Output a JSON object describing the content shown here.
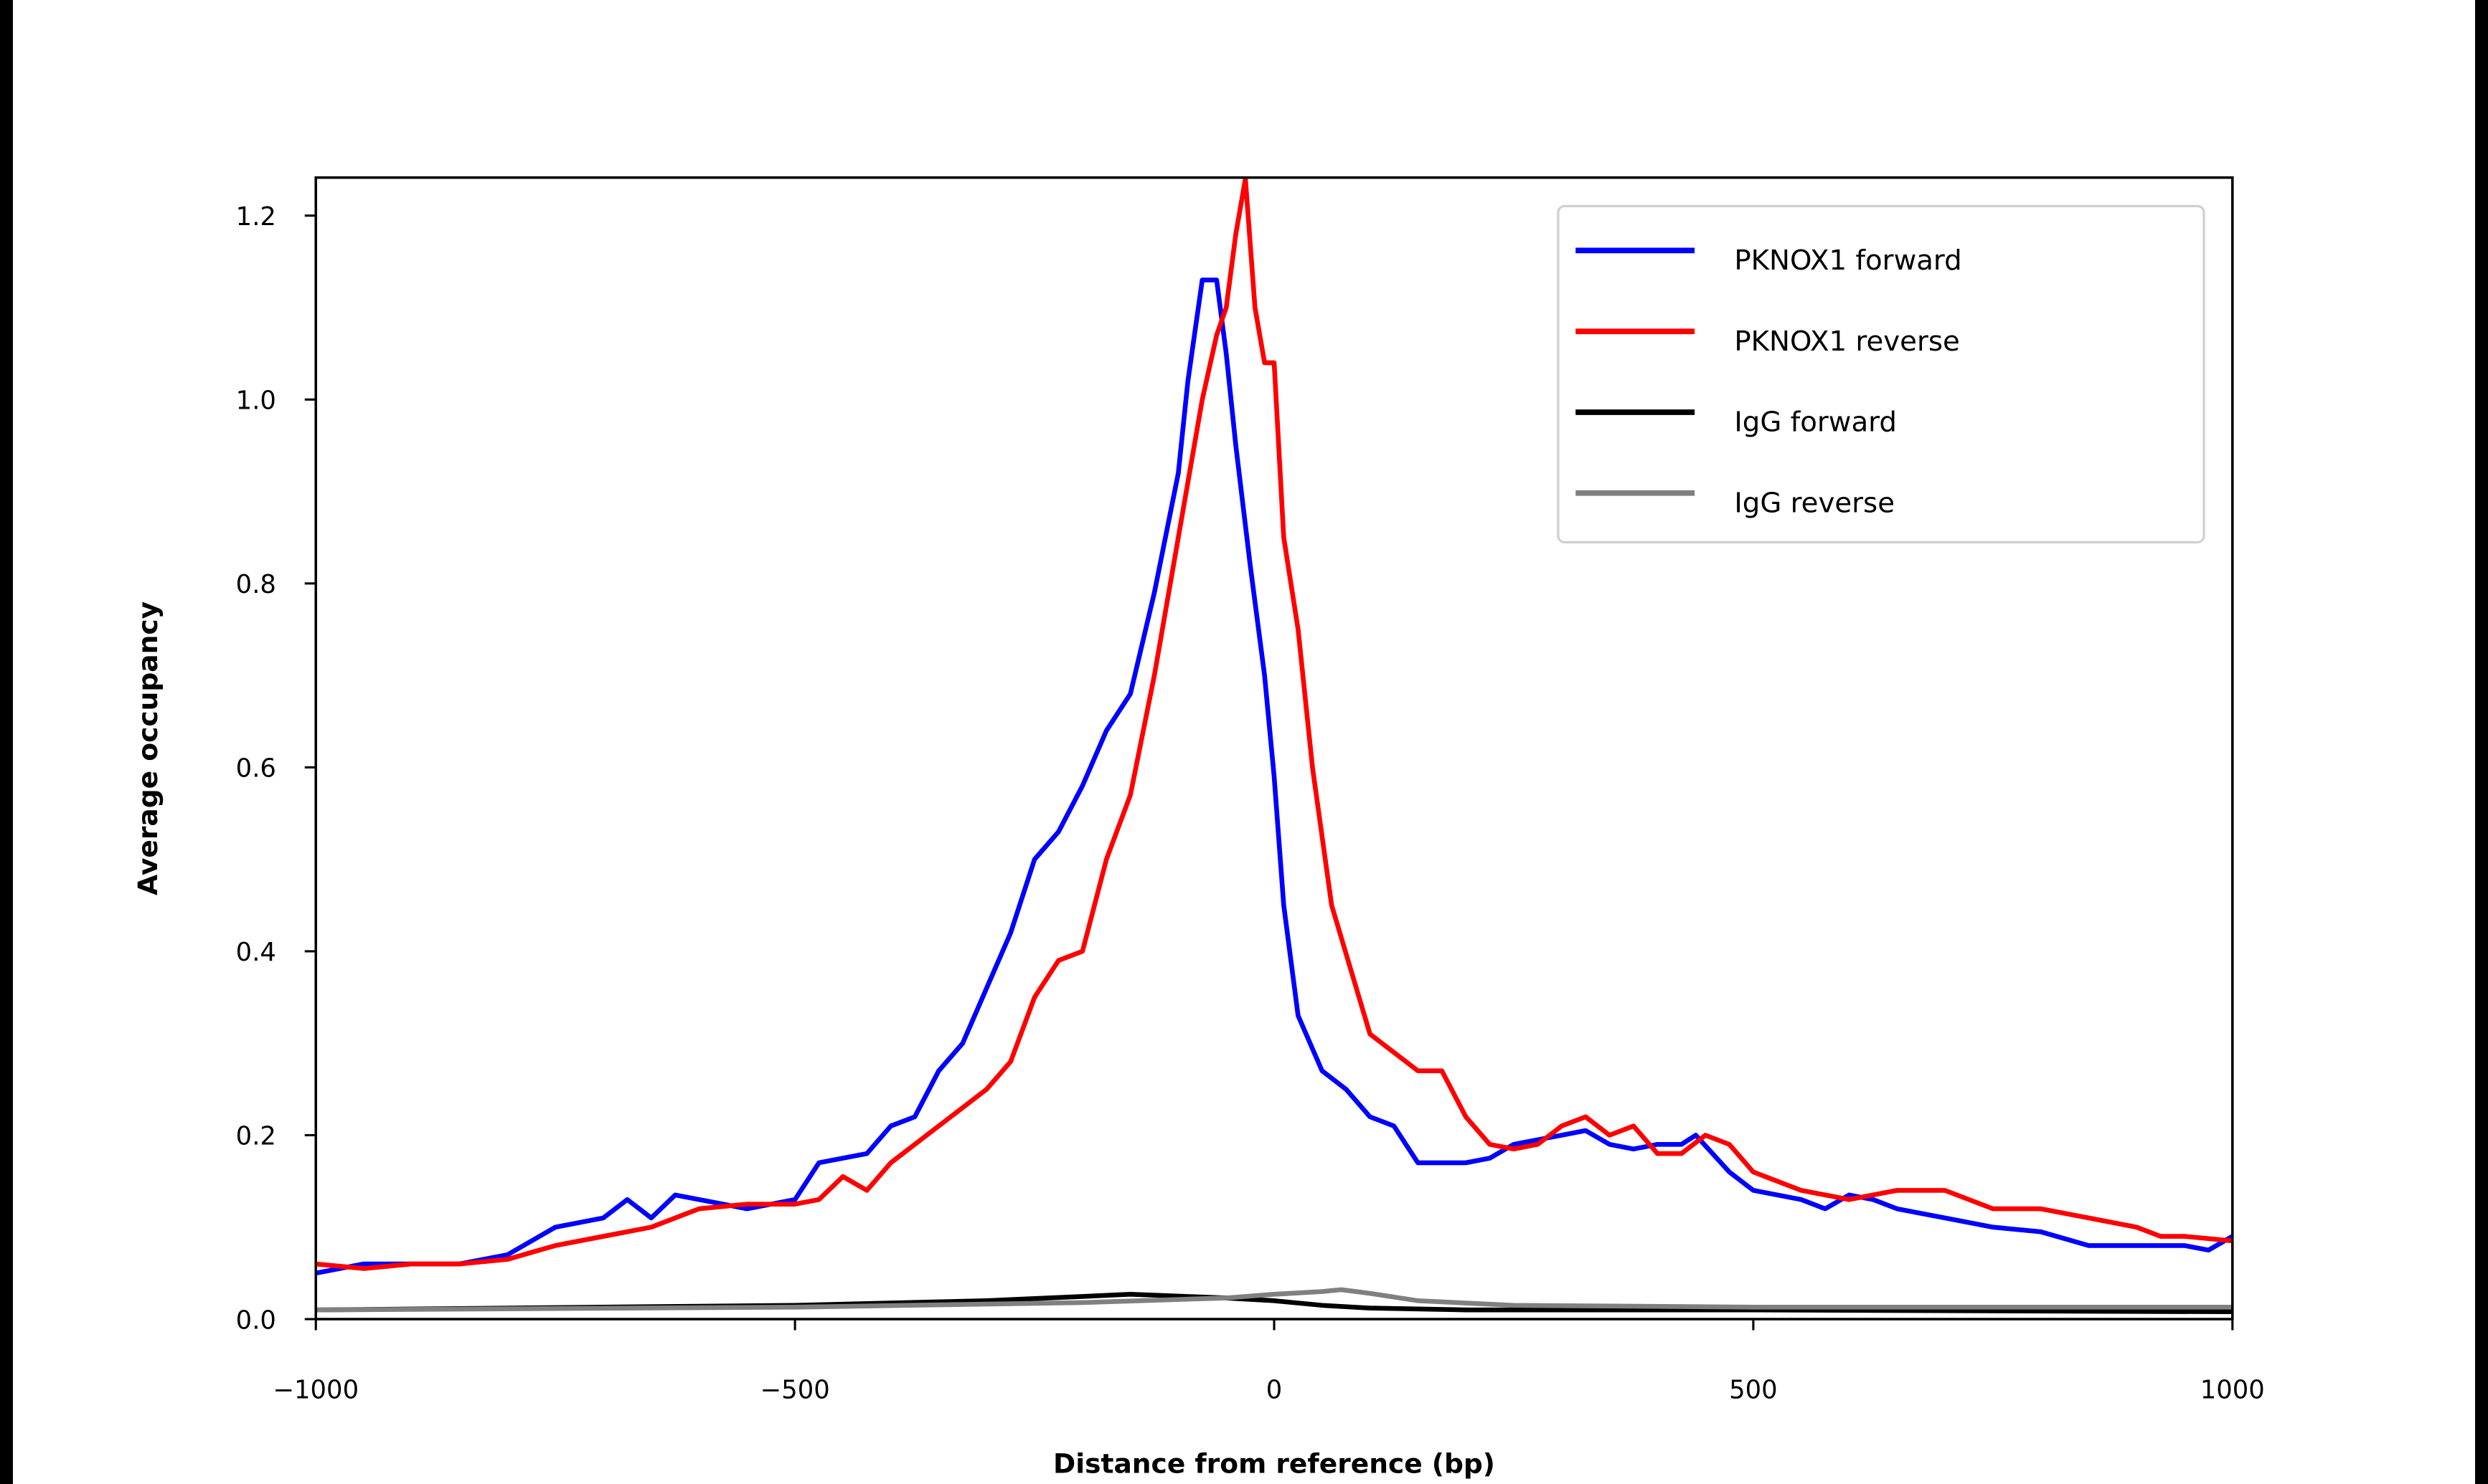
{
  "chart_data": {
    "type": "line",
    "title": "",
    "xlabel": "Distance from reference (bp)",
    "ylabel": "Average occupancy",
    "xlim": [
      -1000,
      1000
    ],
    "ylim": [
      0,
      1.24
    ],
    "xticks": [
      -1000,
      -500,
      0,
      500,
      1000
    ],
    "xtick_labels": [
      "−1000",
      "−500",
      "0",
      "500",
      "1000"
    ],
    "yticks": [
      0,
      0.2,
      0.4,
      0.6,
      0.8,
      1.0,
      1.2
    ],
    "ytick_labels": [
      "0.0",
      "0.2",
      "0.4",
      "0.6",
      "0.8",
      "1.0",
      "1.2"
    ],
    "grid": false,
    "legend_position": "top-right",
    "series": [
      {
        "name": "PKNOX1 forward",
        "color": "#0000ff",
        "x": [
          -1000,
          -950,
          -900,
          -850,
          -800,
          -750,
          -700,
          -675,
          -650,
          -625,
          -600,
          -550,
          -500,
          -475,
          -450,
          -425,
          -400,
          -375,
          -350,
          -325,
          -300,
          -275,
          -250,
          -225,
          -200,
          -175,
          -150,
          -125,
          -100,
          -90,
          -75,
          -60,
          -50,
          -40,
          -25,
          -10,
          0,
          10,
          25,
          50,
          75,
          100,
          125,
          150,
          175,
          200,
          225,
          250,
          275,
          300,
          325,
          350,
          375,
          400,
          425,
          440,
          475,
          500,
          550,
          575,
          600,
          625,
          650,
          700,
          750,
          800,
          850,
          900,
          950,
          975,
          1000
        ],
        "y": [
          0.05,
          0.06,
          0.06,
          0.06,
          0.07,
          0.1,
          0.11,
          0.13,
          0.11,
          0.135,
          0.13,
          0.12,
          0.13,
          0.17,
          0.175,
          0.18,
          0.21,
          0.22,
          0.27,
          0.3,
          0.36,
          0.42,
          0.5,
          0.53,
          0.58,
          0.64,
          0.68,
          0.79,
          0.92,
          1.02,
          1.13,
          1.13,
          1.05,
          0.95,
          0.82,
          0.7,
          0.59,
          0.45,
          0.33,
          0.27,
          0.25,
          0.22,
          0.21,
          0.17,
          0.17,
          0.17,
          0.175,
          0.19,
          0.195,
          0.2,
          0.205,
          0.19,
          0.185,
          0.19,
          0.19,
          0.2,
          0.16,
          0.14,
          0.13,
          0.12,
          0.135,
          0.13,
          0.12,
          0.11,
          0.1,
          0.095,
          0.08,
          0.08,
          0.08,
          0.075,
          0.09
        ]
      },
      {
        "name": "PKNOX1 reverse",
        "color": "#ff0000",
        "x": [
          -1000,
          -950,
          -900,
          -850,
          -800,
          -750,
          -700,
          -650,
          -600,
          -550,
          -500,
          -475,
          -450,
          -425,
          -400,
          -375,
          -350,
          -325,
          -300,
          -275,
          -250,
          -225,
          -200,
          -175,
          -150,
          -125,
          -100,
          -75,
          -60,
          -50,
          -40,
          -30,
          -20,
          -10,
          0,
          10,
          25,
          40,
          60,
          80,
          100,
          125,
          150,
          175,
          200,
          225,
          250,
          275,
          300,
          325,
          350,
          375,
          400,
          425,
          450,
          475,
          500,
          525,
          550,
          600,
          650,
          700,
          750,
          800,
          850,
          900,
          925,
          950,
          1000
        ],
        "y": [
          0.06,
          0.055,
          0.06,
          0.06,
          0.065,
          0.08,
          0.09,
          0.1,
          0.12,
          0.125,
          0.125,
          0.13,
          0.155,
          0.14,
          0.17,
          0.19,
          0.21,
          0.23,
          0.25,
          0.28,
          0.35,
          0.39,
          0.4,
          0.5,
          0.57,
          0.7,
          0.85,
          1.0,
          1.07,
          1.1,
          1.18,
          1.24,
          1.1,
          1.04,
          1.04,
          0.85,
          0.75,
          0.6,
          0.45,
          0.38,
          0.31,
          0.29,
          0.27,
          0.27,
          0.22,
          0.19,
          0.185,
          0.19,
          0.21,
          0.22,
          0.2,
          0.21,
          0.18,
          0.18,
          0.2,
          0.19,
          0.16,
          0.15,
          0.14,
          0.13,
          0.14,
          0.14,
          0.12,
          0.12,
          0.11,
          0.1,
          0.09,
          0.09,
          0.085
        ]
      },
      {
        "name": "IgG forward",
        "color": "#000000",
        "x": [
          -1000,
          -500,
          -300,
          -150,
          -50,
          0,
          50,
          100,
          200,
          500,
          1000
        ],
        "y": [
          0.01,
          0.015,
          0.02,
          0.027,
          0.023,
          0.02,
          0.015,
          0.012,
          0.01,
          0.01,
          0.008
        ]
      },
      {
        "name": "IgG reverse",
        "color": "#808080",
        "x": [
          -1000,
          -500,
          -200,
          -50,
          0,
          50,
          70,
          100,
          150,
          250,
          500,
          1000
        ],
        "y": [
          0.01,
          0.013,
          0.018,
          0.023,
          0.027,
          0.03,
          0.032,
          0.028,
          0.02,
          0.015,
          0.013,
          0.013
        ]
      }
    ]
  }
}
